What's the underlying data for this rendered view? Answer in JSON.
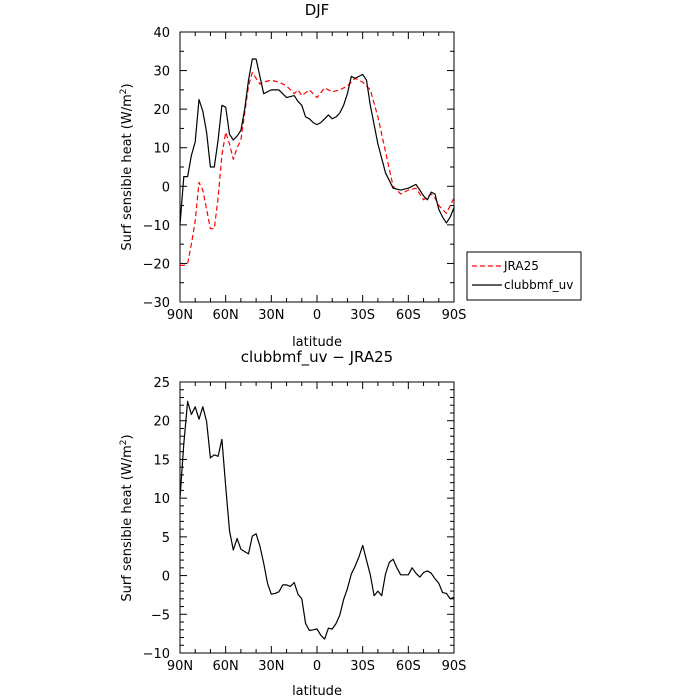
{
  "chart_data": [
    {
      "type": "line",
      "title": "DJF",
      "xlabel": "latitude",
      "ylabel": "Surf sensible heat (W/m²)",
      "ylabel_main": "Surf sensible heat (W/m",
      "ylabel_sup": "2",
      "ylabel_close": ")",
      "xlim": [
        90,
        -90
      ],
      "ylim": [
        -30,
        40
      ],
      "xticks": [
        90,
        60,
        30,
        0,
        -30,
        -60,
        -90
      ],
      "xtick_labels": [
        "90N",
        "60N",
        "30N",
        "0",
        "30S",
        "60S",
        "90S"
      ],
      "yticks": [
        -30,
        -20,
        -10,
        0,
        10,
        20,
        30,
        40
      ],
      "ytick_labels": [
        "−30",
        "−20",
        "−10",
        "0",
        "10",
        "20",
        "30",
        "40"
      ],
      "legend_position": "right",
      "series": [
        {
          "name": "JRA25",
          "color": "#ff0000",
          "dash": "dashed",
          "x": [
            90,
            87.5,
            85,
            82.5,
            80,
            77.5,
            75,
            72.5,
            70,
            67.5,
            65,
            62.5,
            60,
            57.5,
            55,
            52.5,
            50,
            47.5,
            45,
            42.5,
            40,
            37.5,
            35,
            30,
            25,
            20,
            15,
            12.5,
            10,
            5,
            0,
            -5,
            -10,
            -15,
            -20,
            -25,
            -30,
            -35,
            -40,
            -45,
            -50,
            -55,
            -60,
            -65,
            -70,
            -75,
            -77.5,
            -80,
            -85,
            -90
          ],
          "values": [
            -20.5,
            -20.5,
            -20,
            -15,
            -9,
            1,
            -1,
            -6,
            -11,
            -11,
            -3,
            8,
            14,
            11,
            7,
            10,
            12,
            19,
            26,
            29.5,
            28,
            26.5,
            27,
            27.5,
            27,
            26,
            24,
            25,
            23.5,
            25,
            23,
            25.5,
            24.5,
            25,
            26,
            28,
            27,
            25,
            18,
            9,
            0,
            -2,
            -1,
            -0.5,
            -3.5,
            -2,
            -3,
            -5,
            -7,
            -3
          ]
        },
        {
          "name": "clubbmf_uv",
          "color": "#000000",
          "dash": "solid",
          "x": [
            90,
            87.5,
            85,
            82.5,
            80,
            77.5,
            75,
            72.5,
            70,
            67.5,
            65,
            62.5,
            60,
            57.5,
            55,
            52.5,
            50,
            47.5,
            45,
            42.5,
            40,
            37.5,
            35,
            30,
            25,
            20,
            15,
            12.5,
            10,
            7.5,
            5,
            2.5,
            0,
            -2.5,
            -5,
            -7.5,
            -10,
            -12.5,
            -15,
            -17.5,
            -20,
            -22.5,
            -25,
            -27.5,
            -30,
            -32.5,
            -35,
            -40,
            -45,
            -50,
            -55,
            -60,
            -65,
            -67.5,
            -70,
            -72.5,
            -75,
            -77.5,
            -80,
            -82.5,
            -85,
            -87.5,
            -90
          ],
          "values": [
            -10,
            2.5,
            2.5,
            8,
            11.5,
            22.5,
            19.5,
            14,
            5,
            5,
            12,
            21,
            20.5,
            13.5,
            12,
            13,
            14.5,
            20,
            27.5,
            33,
            33,
            28.5,
            24,
            25,
            25,
            23,
            23.5,
            22,
            21,
            18,
            17.5,
            16.5,
            16,
            16.5,
            17.5,
            18.5,
            17.5,
            18,
            19,
            21,
            24,
            28.5,
            28,
            28.5,
            29,
            27.5,
            21,
            11,
            3.5,
            -0.5,
            -1,
            -0.5,
            0.5,
            -1,
            -2.5,
            -3.5,
            -1.5,
            -2,
            -6,
            -8,
            -9.5,
            -8,
            -5.5
          ]
        }
      ]
    },
    {
      "type": "line",
      "title": "clubbmf_uv − JRA25",
      "xlabel": "latitude",
      "ylabel": "Surf sensible heat (W/m²)",
      "ylabel_main": "Surf sensible heat (W/m",
      "ylabel_sup": "2",
      "ylabel_close": ")",
      "xlim": [
        90,
        -90
      ],
      "ylim": [
        -10,
        25
      ],
      "xticks": [
        90,
        60,
        30,
        0,
        -30,
        -60,
        -90
      ],
      "xtick_labels": [
        "90N",
        "60N",
        "30N",
        "0",
        "30S",
        "60S",
        "90S"
      ],
      "yticks": [
        -10,
        -5,
        0,
        5,
        10,
        15,
        20,
        25
      ],
      "ytick_labels": [
        "−10",
        "−5",
        "0",
        "5",
        "10",
        "15",
        "20",
        "25"
      ],
      "series": [
        {
          "name": "clubbmf_uv − JRA25",
          "color": "#000000",
          "dash": "solid",
          "x": [
            90,
            87.5,
            85,
            82.5,
            80,
            77.5,
            75,
            72.5,
            70,
            67.5,
            65,
            62.5,
            60,
            57.5,
            55,
            52.5,
            50,
            47.5,
            45,
            42.5,
            40,
            37.5,
            35,
            32.5,
            30,
            27.5,
            25,
            22.5,
            20,
            17.5,
            15,
            12.5,
            10,
            7.5,
            5,
            2.5,
            0,
            -2.5,
            -5,
            -7.5,
            -10,
            -12.5,
            -15,
            -17.5,
            -20,
            -22.5,
            -25,
            -27.5,
            -30,
            -32.5,
            -35,
            -37.5,
            -40,
            -42.5,
            -45,
            -47.5,
            -50,
            -52.5,
            -55,
            -57.5,
            -60,
            -62.5,
            -65,
            -67.5,
            -70,
            -72.5,
            -75,
            -77.5,
            -80,
            -82.5,
            -85,
            -87.5,
            -90
          ],
          "values": [
            10,
            17,
            22.5,
            20.8,
            21.8,
            20.2,
            21.8,
            19.9,
            15.2,
            15.6,
            15.4,
            17.6,
            11.5,
            5.8,
            3.3,
            4.8,
            3.4,
            3.1,
            2.8,
            5.1,
            5.4,
            3.8,
            1.6,
            -1,
            -2.4,
            -2.3,
            -2.1,
            -1.2,
            -1.2,
            -1.4,
            -0.9,
            -2.4,
            -3,
            -6.2,
            -7.1,
            -7,
            -6.9,
            -7.7,
            -8.2,
            -6.8,
            -6.9,
            -6.2,
            -5.1,
            -3.1,
            -1.7,
            0.2,
            1.2,
            2.4,
            3.9,
            2,
            0.1,
            -2.6,
            -2,
            -2.6,
            0.2,
            1.7,
            2.1,
            1,
            0.1,
            0.1,
            0.1,
            1,
            0.3,
            -0.2,
            0.4,
            0.6,
            0.3,
            -0.4,
            -1,
            -2.2,
            -2.3,
            -3,
            -2.8
          ]
        }
      ]
    }
  ]
}
